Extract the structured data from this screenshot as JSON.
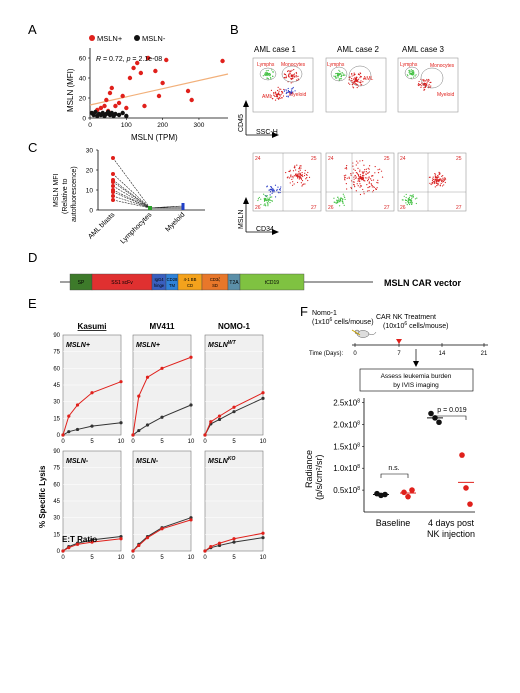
{
  "panel_letters": [
    "A",
    "B",
    "C",
    "D",
    "E",
    "F"
  ],
  "panelA": {
    "legend": [
      "MSLN+",
      "MSLN-"
    ],
    "stats_r": "R",
    "stats_text": " = 0.72, ",
    "stats_p": "p",
    "stats_ptext": " = 2.1e-08",
    "ylabel": "MSLN (MFI)",
    "xlabel": "MSLN (TPM)",
    "yticks": [
      "0",
      "20",
      "40",
      "60"
    ],
    "xticks": [
      "0",
      "100",
      "200",
      "300"
    ]
  },
  "panelB": {
    "titles": [
      "AML case 1",
      "AML case 2",
      "AML case 3"
    ],
    "gates1": [
      "Lymphs",
      "Monocytes",
      "AML",
      "Myeloid"
    ],
    "gates2": [
      "Lymphs",
      "AML"
    ],
    "gates3": [
      "Lymphs",
      "Monocytes",
      "Myeloid"
    ],
    "top_y": "CD45",
    "top_x": "SSC-H",
    "bottom_y": "MSLN",
    "bottom_x": "CD34",
    "quad": [
      "24",
      "25",
      "26",
      "27"
    ]
  },
  "panelC": {
    "ylabel1": "MSLN MFI",
    "ylabel2": "(Relative to",
    "ylabel3": "autofluorescence)",
    "yticks": [
      "0",
      "10",
      "20",
      "30"
    ],
    "categories": [
      "AML blasts",
      "Lymphocytes",
      "Myeloid"
    ]
  },
  "panelD": {
    "segments": [
      "SP",
      "SS1 scFv",
      "IgG4 hinge",
      "CD28 TM",
      "4-1 BB CD",
      "CD3ζ SD",
      "T2A",
      "tCD19"
    ],
    "label": "MSLN CAR vector"
  },
  "panelE": {
    "cols": [
      "Kasumi",
      "MV411",
      "NOMO-1"
    ],
    "row_labels_top": [
      "MSLN+",
      "MSLN+",
      "MSLN"
    ],
    "row_labels_bottom": [
      "MSLN-",
      "MSLN-",
      "MSLN"
    ],
    "sup_top": "WT",
    "sup_bottom": "KO",
    "yticks": [
      "0",
      "15",
      "30",
      "45",
      "60",
      "75",
      "90"
    ],
    "xticks": [
      "0",
      "5",
      "10"
    ],
    "ylabel": "% Specific Lysis",
    "xlabel": "E:T Ratio"
  },
  "panelF": {
    "mouse_label1": "Nomo-1",
    "mouse_label2": "(1x10",
    "mouse_label2b": "6",
    "mouse_label2c": " cells/mouse)",
    "treat1": "CAR NK Treatment",
    "treat2": "(10x10",
    "treat2b": "6",
    "treat2c": " cells/mouse)",
    "time_label": "Time (Days):",
    "time_ticks": [
      "0",
      "7",
      "14",
      "21"
    ],
    "box1": "Assess leukemia burden",
    "box2": "by IVIS imaging",
    "yticks": [
      "0.5x10",
      "1.0x10",
      "1.5x10",
      "2.0x10",
      "2.5x10"
    ],
    "ytick_sup": "8",
    "ylabel1": "Radiance",
    "ylabel2": "(p/s/cm²/sr)",
    "ns": "n.s.",
    "pval": "p = 0.019",
    "groups": [
      "Baseline",
      "4 days post",
      "NK injection"
    ]
  },
  "chart_data": [
    {
      "type": "scatter",
      "xlabel": "MSLN (TPM)",
      "ylabel": "MSLN (MFI)",
      "xlim": [
        0,
        380
      ],
      "ylim": [
        0,
        70
      ],
      "series": [
        {
          "name": "MSLN+",
          "color": "#e0201b",
          "points": [
            [
              20,
              8
            ],
            [
              30,
              10
            ],
            [
              40,
              12
            ],
            [
              45,
              18
            ],
            [
              50,
              7
            ],
            [
              55,
              25
            ],
            [
              60,
              30
            ],
            [
              70,
              12
            ],
            [
              80,
              15
            ],
            [
              90,
              22
            ],
            [
              100,
              10
            ],
            [
              110,
              40
            ],
            [
              120,
              50
            ],
            [
              130,
              55
            ],
            [
              140,
              45
            ],
            [
              150,
              12
            ],
            [
              160,
              60
            ],
            [
              180,
              47
            ],
            [
              190,
              22
            ],
            [
              200,
              35
            ],
            [
              210,
              58
            ],
            [
              270,
              27
            ],
            [
              280,
              18
            ],
            [
              365,
              57
            ]
          ]
        },
        {
          "name": "MSLN-",
          "color": "#111111",
          "points": [
            [
              5,
              5
            ],
            [
              10,
              3
            ],
            [
              15,
              6
            ],
            [
              20,
              2
            ],
            [
              25,
              4
            ],
            [
              30,
              3
            ],
            [
              35,
              5
            ],
            [
              40,
              2
            ],
            [
              45,
              4
            ],
            [
              50,
              6
            ],
            [
              55,
              3
            ],
            [
              60,
              5
            ],
            [
              65,
              2
            ],
            [
              70,
              4
            ],
            [
              80,
              3
            ],
            [
              90,
              5
            ],
            [
              100,
              2
            ]
          ]
        }
      ],
      "trend": [
        [
          0,
          13
        ],
        [
          380,
          44
        ]
      ]
    },
    {
      "type": "line",
      "ylabel": "MSLN MFI (Relative to autofluorescence)",
      "categories": [
        "AML blasts",
        "Lymphocytes",
        "Myeloid"
      ],
      "ylim": [
        0,
        30
      ],
      "series": [
        [
          26,
          1,
          1
        ],
        [
          18,
          1,
          2
        ],
        [
          15,
          1,
          1
        ],
        [
          14,
          1,
          1
        ],
        [
          12,
          1,
          2
        ],
        [
          10,
          1,
          1
        ],
        [
          9,
          1,
          1
        ],
        [
          7,
          1,
          1
        ],
        [
          5,
          1,
          1
        ]
      ]
    },
    {
      "type": "line",
      "xlabel": "E:T Ratio",
      "ylabel": "% Specific Lysis",
      "x": [
        0,
        1,
        2.5,
        5,
        10
      ],
      "ylim": [
        0,
        90
      ],
      "panels": [
        {
          "title": "Kasumi",
          "label": "MSLN+",
          "red": [
            0,
            17,
            27,
            38,
            48
          ],
          "black": [
            0,
            3,
            5,
            8,
            11
          ]
        },
        {
          "title": "MV411",
          "label": "MSLN+",
          "red": [
            0,
            35,
            52,
            60,
            70
          ],
          "black": [
            0,
            4,
            9,
            16,
            27
          ]
        },
        {
          "title": "NOMO-1",
          "label": "MSLN WT",
          "red": [
            0,
            12,
            17,
            25,
            38
          ],
          "black": [
            0,
            10,
            14,
            21,
            33
          ]
        },
        {
          "title": "Kasumi",
          "label": "MSLN-",
          "red": [
            0,
            3,
            6,
            8,
            11
          ],
          "black": [
            0,
            4,
            7,
            10,
            13
          ]
        },
        {
          "title": "MV411",
          "label": "MSLN-",
          "red": [
            0,
            5,
            12,
            20,
            28
          ],
          "black": [
            0,
            6,
            13,
            21,
            30
          ]
        },
        {
          "title": "NOMO-1",
          "label": "MSLN KO",
          "red": [
            0,
            4,
            7,
            11,
            16
          ],
          "black": [
            0,
            3,
            5,
            8,
            12
          ]
        }
      ]
    },
    {
      "type": "scatter",
      "ylabel": "Radiance (p/s/cm²/sr)",
      "categories": [
        "Baseline",
        "4 days post NK injection"
      ],
      "ylim": [
        0,
        2.5
      ],
      "series": [
        {
          "color": "#111111",
          "values": [
            [
              0.42,
              0.38,
              0.4
            ],
            [
              2.25,
              2.15,
              2.05
            ]
          ]
        },
        {
          "color": "#e0201b",
          "values": [
            [
              0.45,
              0.35,
              0.5
            ],
            [
              1.3,
              0.55,
              0.18
            ]
          ]
        }
      ]
    }
  ]
}
